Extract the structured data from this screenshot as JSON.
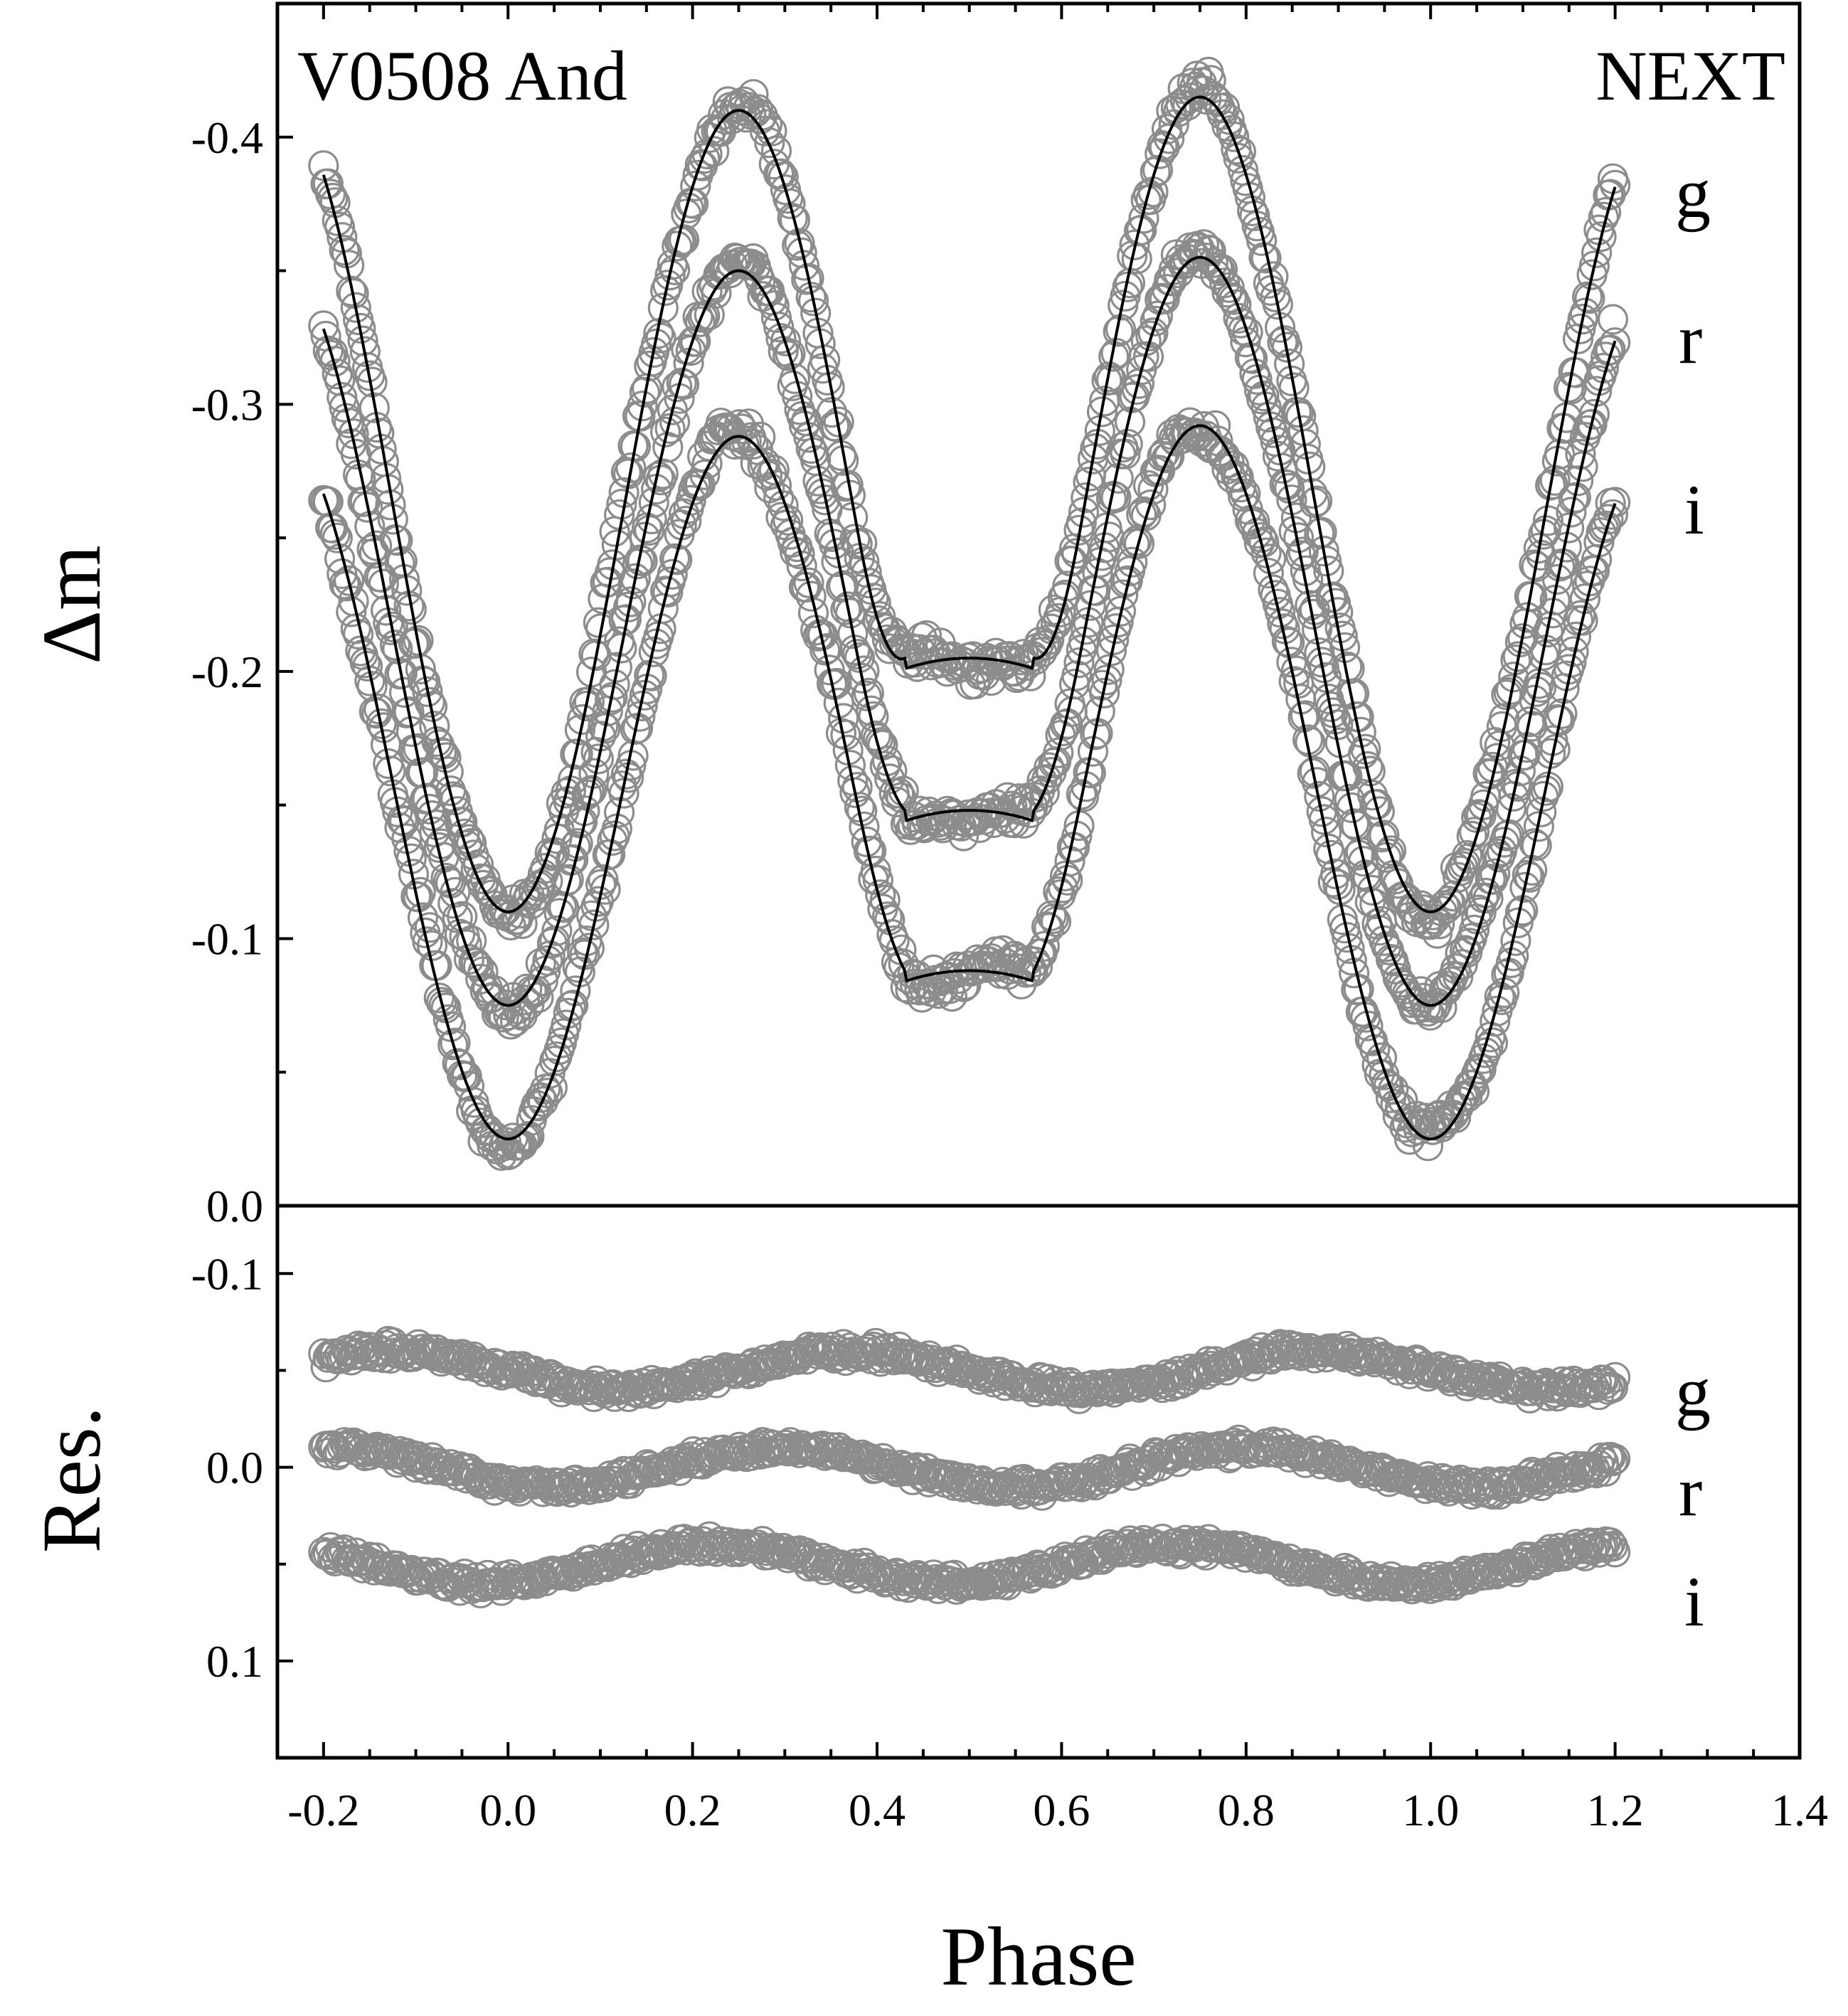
{
  "chart_data": {
    "type": "scatter",
    "object_label": "V0508 And",
    "source_label": "NEXT",
    "xlabel": "Phase",
    "x_ticks": [
      "-0.2",
      "0.0",
      "0.2",
      "0.4",
      "0.6",
      "0.8",
      "1.0",
      "1.2",
      "1.4"
    ],
    "xlim": [
      -0.25,
      1.4
    ],
    "point_color": "#8c8c8c",
    "line_color": "#000000",
    "panels": [
      {
        "name": "light-curve",
        "ylabel": "Δm",
        "ylim": [
          -0.45,
          0.0
        ],
        "y_inverted": true,
        "y_ticks": [
          "-0.4",
          "-0.3",
          "-0.2",
          "-0.1",
          "0.0"
        ],
        "series": [
          {
            "name": "g",
            "min1_mag": -0.11,
            "min2_mag": -0.205,
            "max_mag": -0.41,
            "max_mag_phase075": -0.415
          },
          {
            "name": "r",
            "min1_mag": -0.075,
            "min2_mag": -0.148,
            "max_mag": -0.35,
            "max_mag_phase075": -0.355
          },
          {
            "name": "i",
            "min1_mag": -0.025,
            "min2_mag": -0.088,
            "max_mag": -0.288,
            "max_mag_phase075": -0.292
          }
        ]
      },
      {
        "name": "residuals",
        "ylabel": "Res.",
        "ylim": [
          -0.135,
          0.15
        ],
        "y_inverted": true,
        "y_ticks": [
          "-0.1",
          "0.0",
          "0.1"
        ],
        "series": [
          {
            "name": "g",
            "offset": -0.05
          },
          {
            "name": "r",
            "offset": 0.0
          },
          {
            "name": "i",
            "offset": 0.05
          }
        ]
      }
    ]
  }
}
